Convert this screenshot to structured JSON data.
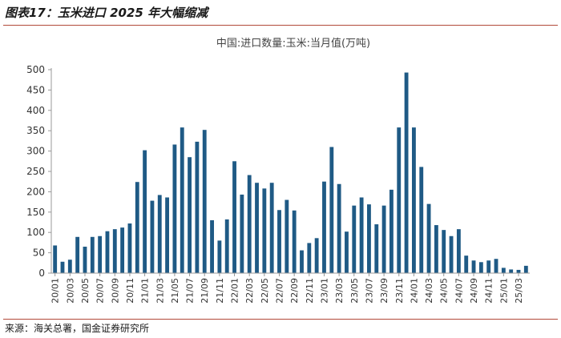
{
  "figure_title": "图表17：玉米进口 2025 年大幅缩减",
  "source": "来源：海关总署，国金证券研究所",
  "colors": {
    "bar": "#1f5a85",
    "axis": "#999999",
    "rule": "#b24a3a"
  },
  "chart_data": {
    "type": "bar",
    "title": "中国:进口数量:玉米:当月值(万吨)",
    "xlabel": "",
    "ylabel": "",
    "ylim": [
      0,
      500
    ],
    "yticks": [
      0,
      50,
      100,
      150,
      200,
      250,
      300,
      350,
      400,
      450,
      500
    ],
    "grid": false,
    "legend": "none",
    "xtick_labels": [
      "20/01",
      "20/03",
      "20/05",
      "20/07",
      "20/09",
      "20/11",
      "21/01",
      "21/03",
      "21/05",
      "21/07",
      "21/09",
      "21/11",
      "22/01",
      "22/03",
      "22/05",
      "22/07",
      "22/09",
      "22/11",
      "23/01",
      "23/03",
      "23/05",
      "23/07",
      "23/09",
      "23/11",
      "24/01",
      "24/03",
      "24/05",
      "24/07",
      "24/09",
      "24/11",
      "25/01",
      "25/03"
    ],
    "categories": [
      "20/01",
      "20/02",
      "20/03",
      "20/04",
      "20/05",
      "20/06",
      "20/07",
      "20/08",
      "20/09",
      "20/10",
      "20/11",
      "20/12",
      "21/01",
      "21/02",
      "21/03",
      "21/04",
      "21/05",
      "21/06",
      "21/07",
      "21/08",
      "21/09",
      "21/10",
      "21/11",
      "21/12",
      "22/01",
      "22/02",
      "22/03",
      "22/04",
      "22/05",
      "22/06",
      "22/07",
      "22/08",
      "22/09",
      "22/10",
      "22/11",
      "22/12",
      "23/01",
      "23/02",
      "23/03",
      "23/04",
      "23/05",
      "23/06",
      "23/07",
      "23/08",
      "23/09",
      "23/10",
      "23/11",
      "23/12",
      "24/01",
      "24/02",
      "24/03",
      "24/04",
      "24/05",
      "24/06",
      "24/07",
      "24/08",
      "24/09",
      "24/10",
      "24/11",
      "24/12",
      "25/01",
      "25/02",
      "25/03",
      "25/04"
    ],
    "values": [
      68,
      28,
      33,
      89,
      65,
      89,
      91,
      103,
      108,
      112,
      122,
      224,
      302,
      178,
      192,
      186,
      316,
      358,
      285,
      323,
      352,
      130,
      80,
      132,
      275,
      193,
      241,
      222,
      208,
      222,
      155,
      180,
      154,
      56,
      74,
      86,
      225,
      310,
      219,
      102,
      166,
      186,
      169,
      120,
      166,
      205,
      358,
      493,
      358,
      261,
      170,
      118,
      106,
      91,
      108,
      43,
      31,
      27,
      31,
      35,
      13,
      9,
      8,
      18
    ]
  }
}
